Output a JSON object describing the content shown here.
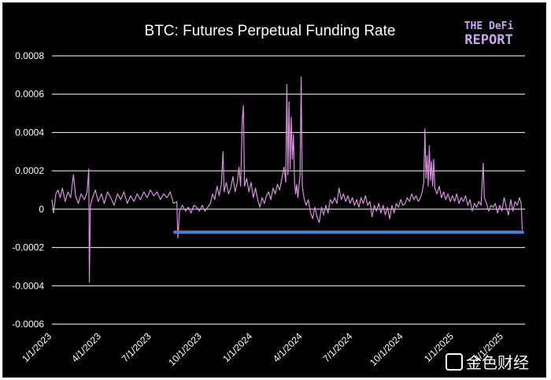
{
  "chart_data": {
    "type": "line",
    "title": "BTC: Futures Perpetual Funding Rate",
    "xlabel": "",
    "ylabel": "",
    "ylim": [
      -0.0006,
      0.0008
    ],
    "yticks": [
      0.0008,
      0.0006,
      0.0004,
      0.0002,
      0,
      -0.0002,
      -0.0004,
      -0.0006
    ],
    "ytick_labels": [
      "0.0008",
      "0.0006",
      "0.0004",
      "0.0002",
      "0",
      "-0.0002",
      "-0.0004",
      "-0.0006"
    ],
    "xlim": [
      "2023-01-01",
      "2025-05-10"
    ],
    "xticks": [
      "2023-01-01",
      "2023-04-01",
      "2023-07-01",
      "2023-10-01",
      "2024-01-01",
      "2024-04-01",
      "2024-07-01",
      "2024-10-01",
      "2025-01-01",
      "2025-04-01"
    ],
    "xtick_labels": [
      "1/1/2023",
      "4/1/2023",
      "7/1/2023",
      "10/1/2023",
      "1/1/2024",
      "4/1/2024",
      "7/1/2024",
      "10/1/2024",
      "1/1/2025",
      "4/1/2025"
    ],
    "grid": "horizontal",
    "series": [
      {
        "color": "#d98fe0",
        "points": [
          [
            "2023-01-01",
            5e-05
          ],
          [
            "2023-01-04",
            -2e-05
          ],
          [
            "2023-01-08",
            8e-05
          ],
          [
            "2023-01-12",
            0.0001
          ],
          [
            "2023-01-16",
            6e-05
          ],
          [
            "2023-01-20",
            0.00011
          ],
          [
            "2023-01-25",
            4e-05
          ],
          [
            "2023-01-30",
            9e-05
          ],
          [
            "2023-02-04",
            6e-05
          ],
          [
            "2023-02-09",
            0.00018
          ],
          [
            "2023-02-13",
            7e-05
          ],
          [
            "2023-02-18",
            3e-05
          ],
          [
            "2023-02-23",
            8e-05
          ],
          [
            "2023-03-01",
            5e-05
          ],
          [
            "2023-03-06",
            9e-05
          ],
          [
            "2023-03-09",
            0.00021
          ],
          [
            "2023-03-10",
            -0.00038
          ],
          [
            "2023-03-12",
            2e-05
          ],
          [
            "2023-03-16",
            6e-05
          ],
          [
            "2023-03-21",
            0.0001
          ],
          [
            "2023-03-26",
            4e-05
          ],
          [
            "2023-04-01",
            8e-05
          ],
          [
            "2023-04-06",
            3e-05
          ],
          [
            "2023-04-12",
            9e-05
          ],
          [
            "2023-04-18",
            6e-05
          ],
          [
            "2023-04-24",
            2e-05
          ],
          [
            "2023-04-30",
            8e-05
          ],
          [
            "2023-05-06",
            5e-05
          ],
          [
            "2023-05-12",
            9e-05
          ],
          [
            "2023-05-18",
            3e-05
          ],
          [
            "2023-05-24",
            7e-05
          ],
          [
            "2023-05-30",
            4e-05
          ],
          [
            "2023-06-05",
            8e-05
          ],
          [
            "2023-06-11",
            5e-05
          ],
          [
            "2023-06-17",
            9e-05
          ],
          [
            "2023-06-23",
            6e-05
          ],
          [
            "2023-06-29",
            0.0001
          ],
          [
            "2023-07-05",
            7e-05
          ],
          [
            "2023-07-11",
            9e-05
          ],
          [
            "2023-07-17",
            5e-05
          ],
          [
            "2023-07-23",
            8e-05
          ],
          [
            "2023-07-29",
            6e-05
          ],
          [
            "2023-08-04",
            9e-05
          ],
          [
            "2023-08-10",
            3e-05
          ],
          [
            "2023-08-16",
            4e-05
          ],
          [
            "2023-08-18",
            -0.00015
          ],
          [
            "2023-08-21",
            -1e-05
          ],
          [
            "2023-08-26",
            2e-05
          ],
          [
            "2023-09-01",
            -1e-05
          ],
          [
            "2023-09-06",
            1e-05
          ],
          [
            "2023-09-11",
            -2e-05
          ],
          [
            "2023-09-16",
            2e-05
          ],
          [
            "2023-09-21",
            1e-05
          ],
          [
            "2023-09-26",
            -1e-05
          ],
          [
            "2023-10-01",
            2e-05
          ],
          [
            "2023-10-06",
            -1e-05
          ],
          [
            "2023-10-11",
            1e-05
          ],
          [
            "2023-10-16",
            3e-05
          ],
          [
            "2023-10-20",
            8e-05
          ],
          [
            "2023-10-24",
            5e-05
          ],
          [
            "2023-10-28",
            0.00012
          ],
          [
            "2023-11-01",
            7e-05
          ],
          [
            "2023-11-05",
            0.00013
          ],
          [
            "2023-11-08",
            0.0003
          ],
          [
            "2023-11-10",
            9e-05
          ],
          [
            "2023-11-14",
            0.00014
          ],
          [
            "2023-11-18",
            8e-05
          ],
          [
            "2023-11-22",
            0.00011
          ],
          [
            "2023-11-26",
            0.00017
          ],
          [
            "2023-11-30",
            9e-05
          ],
          [
            "2023-12-04",
            0.00014
          ],
          [
            "2023-12-07",
            0.00022
          ],
          [
            "2023-12-10",
            0.00012
          ],
          [
            "2023-12-13",
            0.00047
          ],
          [
            "2023-12-15",
            0.00054
          ],
          [
            "2023-12-17",
            0.00012
          ],
          [
            "2023-12-21",
            0.00016
          ],
          [
            "2023-12-25",
            9e-05
          ],
          [
            "2023-12-29",
            0.00014
          ],
          [
            "2024-01-02",
            6e-05
          ],
          [
            "2024-01-06",
            0.00011
          ],
          [
            "2024-01-10",
            5e-05
          ],
          [
            "2024-01-14",
            1e-05
          ],
          [
            "2024-01-18",
            6e-05
          ],
          [
            "2024-01-22",
            3e-05
          ],
          [
            "2024-01-26",
            7e-05
          ],
          [
            "2024-01-30",
            9e-05
          ],
          [
            "2024-02-03",
            5e-05
          ],
          [
            "2024-02-07",
            0.00011
          ],
          [
            "2024-02-11",
            8e-05
          ],
          [
            "2024-02-15",
            0.00013
          ],
          [
            "2024-02-19",
            0.0001
          ],
          [
            "2024-02-23",
            0.00016
          ],
          [
            "2024-02-27",
            0.00022
          ],
          [
            "2024-03-01",
            0.00014
          ],
          [
            "2024-03-03",
            0.00065
          ],
          [
            "2024-03-05",
            0.00018
          ],
          [
            "2024-03-07",
            0.00056
          ],
          [
            "2024-03-09",
            0.00021
          ],
          [
            "2024-03-11",
            0.00048
          ],
          [
            "2024-03-13",
            0.00026
          ],
          [
            "2024-03-15",
            0.00039
          ],
          [
            "2024-03-17",
            0.00014
          ],
          [
            "2024-03-19",
            8e-05
          ],
          [
            "2024-03-21",
            0.00013
          ],
          [
            "2024-03-23",
            6e-05
          ],
          [
            "2024-03-25",
            0.00012
          ],
          [
            "2024-03-27",
            0.00018
          ],
          [
            "2024-03-29",
            0.00069
          ],
          [
            "2024-03-31",
            0.00012
          ],
          [
            "2024-04-03",
            6e-05
          ],
          [
            "2024-04-07",
            2e-05
          ],
          [
            "2024-04-11",
            5e-05
          ],
          [
            "2024-04-15",
            -2e-05
          ],
          [
            "2024-04-19",
            -5e-05
          ],
          [
            "2024-04-23",
            1e-05
          ],
          [
            "2024-04-27",
            -4e-05
          ],
          [
            "2024-05-01",
            -7e-05
          ],
          [
            "2024-05-05",
            1e-05
          ],
          [
            "2024-05-09",
            -3e-05
          ],
          [
            "2024-05-13",
            2e-05
          ],
          [
            "2024-05-17",
            -2e-05
          ],
          [
            "2024-05-21",
            5e-05
          ],
          [
            "2024-05-25",
            3e-05
          ],
          [
            "2024-05-29",
            6e-05
          ],
          [
            "2024-06-02",
            3e-05
          ],
          [
            "2024-06-06",
            0.00011
          ],
          [
            "2024-06-10",
            5e-05
          ],
          [
            "2024-06-14",
            8e-05
          ],
          [
            "2024-06-18",
            4e-05
          ],
          [
            "2024-06-22",
            7e-05
          ],
          [
            "2024-06-26",
            3e-05
          ],
          [
            "2024-06-30",
            6e-05
          ],
          [
            "2024-07-04",
            2e-05
          ],
          [
            "2024-07-08",
            5e-05
          ],
          [
            "2024-07-12",
            1e-05
          ],
          [
            "2024-07-16",
            6e-05
          ],
          [
            "2024-07-20",
            3e-05
          ],
          [
            "2024-07-24",
            7e-05
          ],
          [
            "2024-07-28",
            2e-05
          ],
          [
            "2024-08-01",
            4e-05
          ],
          [
            "2024-08-05",
            -4e-05
          ],
          [
            "2024-08-09",
            2e-05
          ],
          [
            "2024-08-13",
            -1e-05
          ],
          [
            "2024-08-17",
            3e-05
          ],
          [
            "2024-08-21",
            -2e-05
          ],
          [
            "2024-08-25",
            2e-05
          ],
          [
            "2024-08-29",
            -3e-05
          ],
          [
            "2024-09-02",
            1e-05
          ],
          [
            "2024-09-06",
            -5e-05
          ],
          [
            "2024-09-10",
            2e-05
          ],
          [
            "2024-09-14",
            -2e-05
          ],
          [
            "2024-09-18",
            3e-05
          ],
          [
            "2024-09-22",
            1e-05
          ],
          [
            "2024-09-26",
            5e-05
          ],
          [
            "2024-09-30",
            2e-05
          ],
          [
            "2024-10-04",
            3e-05
          ],
          [
            "2024-10-08",
            6e-05
          ],
          [
            "2024-10-12",
            4e-05
          ],
          [
            "2024-10-16",
            8e-05
          ],
          [
            "2024-10-20",
            5e-05
          ],
          [
            "2024-10-24",
            7e-05
          ],
          [
            "2024-10-28",
            4e-05
          ],
          [
            "2024-11-01",
            6e-05
          ],
          [
            "2024-11-04",
            9e-05
          ],
          [
            "2024-11-07",
            0.00014
          ],
          [
            "2024-11-09",
            0.00042
          ],
          [
            "2024-11-11",
            0.00016
          ],
          [
            "2024-11-13",
            0.00028
          ],
          [
            "2024-11-15",
            0.00012
          ],
          [
            "2024-11-17",
            0.00033
          ],
          [
            "2024-11-19",
            0.00015
          ],
          [
            "2024-11-21",
            0.00025
          ],
          [
            "2024-11-23",
            0.00012
          ],
          [
            "2024-11-25",
            0.00026
          ],
          [
            "2024-11-27",
            0.00011
          ],
          [
            "2024-12-01",
            8e-05
          ],
          [
            "2024-12-05",
            0.00012
          ],
          [
            "2024-12-09",
            6e-05
          ],
          [
            "2024-12-13",
            9e-05
          ],
          [
            "2024-12-17",
            5e-05
          ],
          [
            "2024-12-21",
            8e-05
          ],
          [
            "2024-12-25",
            4e-05
          ],
          [
            "2024-12-29",
            7e-05
          ],
          [
            "2025-01-02",
            4e-05
          ],
          [
            "2025-01-06",
            8e-05
          ],
          [
            "2025-01-10",
            3e-05
          ],
          [
            "2025-01-14",
            6e-05
          ],
          [
            "2025-01-18",
            4e-05
          ],
          [
            "2025-01-22",
            7e-05
          ],
          [
            "2025-01-26",
            2e-05
          ],
          [
            "2025-01-30",
            5e-05
          ],
          [
            "2025-02-03",
            -1e-05
          ],
          [
            "2025-02-07",
            3e-05
          ],
          [
            "2025-02-11",
            1e-05
          ],
          [
            "2025-02-15",
            4e-05
          ],
          [
            "2025-02-19",
            2e-05
          ],
          [
            "2025-02-23",
            0.00024
          ],
          [
            "2025-02-25",
            6e-05
          ],
          [
            "2025-03-01",
            3e-05
          ],
          [
            "2025-03-05",
            -1e-05
          ],
          [
            "2025-03-09",
            2e-05
          ],
          [
            "2025-03-13",
            1e-05
          ],
          [
            "2025-03-17",
            3e-05
          ],
          [
            "2025-03-21",
            -2e-05
          ],
          [
            "2025-03-25",
            2e-05
          ],
          [
            "2025-03-29",
            -1e-05
          ],
          [
            "2025-04-02",
            6e-05
          ],
          [
            "2025-04-06",
            1e-05
          ],
          [
            "2025-04-10",
            -3e-05
          ],
          [
            "2025-04-14",
            5e-05
          ],
          [
            "2025-04-18",
            -1e-05
          ],
          [
            "2025-04-22",
            4e-05
          ],
          [
            "2025-04-26",
            2e-05
          ],
          [
            "2025-04-30",
            6e-05
          ],
          [
            "2025-05-03",
            3e-05
          ],
          [
            "2025-05-05",
            -0.00011
          ]
        ]
      },
      {
        "color": "#4a7fd4",
        "points": [
          [
            "2023-08-10",
            -0.00012
          ],
          [
            "2025-05-08",
            -0.00012
          ]
        ]
      }
    ]
  },
  "logo": {
    "line1": "THE DeFi",
    "line2": "REPORT"
  },
  "watermark": {
    "text": "金色财经"
  },
  "colors": {
    "background": "#000000",
    "grid": "#ffffff",
    "series": "#d98fe0",
    "reference": "#4a7fd4",
    "logo": "#c9a6f0"
  }
}
